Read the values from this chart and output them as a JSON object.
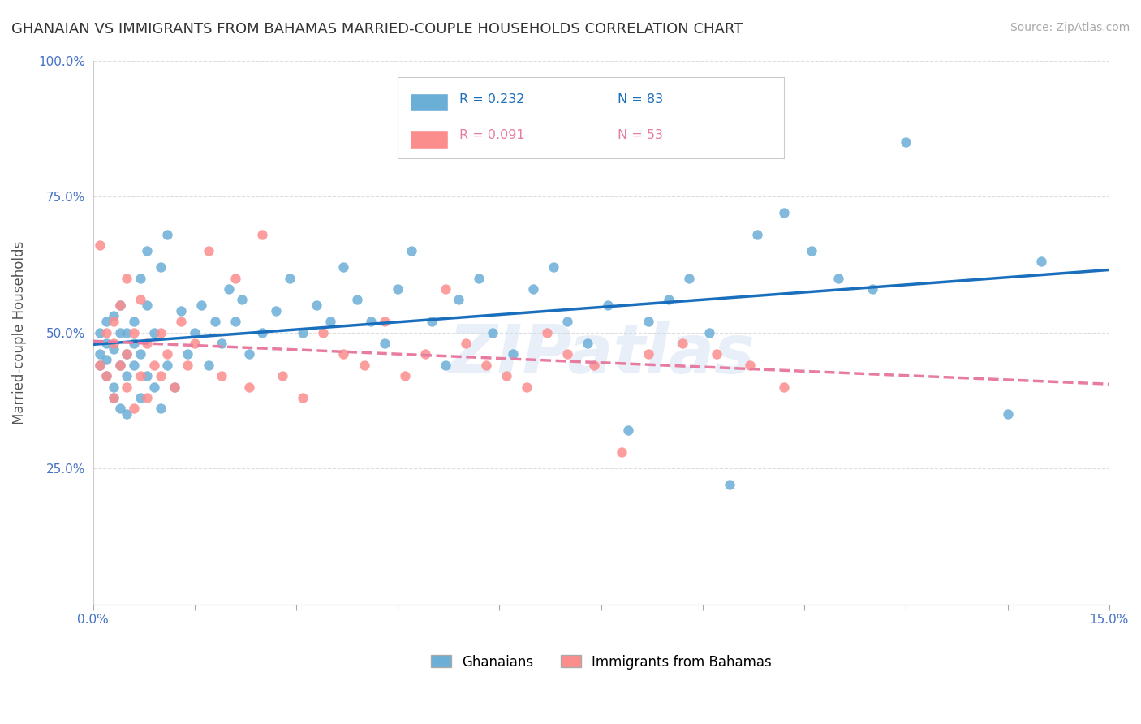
{
  "title": "GHANAIAN VS IMMIGRANTS FROM BAHAMAS MARRIED-COUPLE HOUSEHOLDS CORRELATION CHART",
  "source": "Source: ZipAtlas.com",
  "ylabel_label": "Married-couple Households",
  "x_min": 0.0,
  "x_max": 0.15,
  "y_min": 0.0,
  "y_max": 1.0,
  "y_ticks": [
    0.0,
    0.25,
    0.5,
    0.75,
    1.0
  ],
  "y_tick_labels": [
    "",
    "25.0%",
    "50.0%",
    "75.0%",
    "100.0%"
  ],
  "ghanaian_color": "#6baed6",
  "bahamas_color": "#fc8d8d",
  "ghanaian_R": 0.232,
  "ghanaian_N": 83,
  "bahamas_R": 0.091,
  "bahamas_N": 53,
  "trend_blue": "#1a6fbd",
  "trend_pink": "#e87ca0",
  "watermark": "ZIPatlas",
  "background_color": "#ffffff",
  "grid_color": "#dddddd",
  "tick_label_color": "#4472c4",
  "ghanaian_x": [
    0.001,
    0.001,
    0.001,
    0.002,
    0.002,
    0.002,
    0.002,
    0.003,
    0.003,
    0.003,
    0.003,
    0.004,
    0.004,
    0.004,
    0.004,
    0.005,
    0.005,
    0.005,
    0.005,
    0.006,
    0.006,
    0.006,
    0.007,
    0.007,
    0.007,
    0.008,
    0.008,
    0.008,
    0.009,
    0.009,
    0.01,
    0.01,
    0.011,
    0.011,
    0.012,
    0.013,
    0.014,
    0.015,
    0.016,
    0.017,
    0.018,
    0.019,
    0.02,
    0.021,
    0.022,
    0.023,
    0.025,
    0.027,
    0.029,
    0.031,
    0.033,
    0.035,
    0.037,
    0.039,
    0.041,
    0.043,
    0.045,
    0.047,
    0.05,
    0.052,
    0.054,
    0.057,
    0.059,
    0.062,
    0.065,
    0.068,
    0.07,
    0.073,
    0.076,
    0.079,
    0.082,
    0.085,
    0.088,
    0.091,
    0.094,
    0.098,
    0.102,
    0.106,
    0.11,
    0.115,
    0.12,
    0.135,
    0.14
  ],
  "ghanaian_y": [
    0.46,
    0.5,
    0.44,
    0.48,
    0.42,
    0.45,
    0.52,
    0.4,
    0.47,
    0.53,
    0.38,
    0.44,
    0.5,
    0.36,
    0.55,
    0.42,
    0.46,
    0.5,
    0.35,
    0.44,
    0.48,
    0.52,
    0.38,
    0.46,
    0.6,
    0.42,
    0.55,
    0.65,
    0.4,
    0.5,
    0.36,
    0.62,
    0.44,
    0.68,
    0.4,
    0.54,
    0.46,
    0.5,
    0.55,
    0.44,
    0.52,
    0.48,
    0.58,
    0.52,
    0.56,
    0.46,
    0.5,
    0.54,
    0.6,
    0.5,
    0.55,
    0.52,
    0.62,
    0.56,
    0.52,
    0.48,
    0.58,
    0.65,
    0.52,
    0.44,
    0.56,
    0.6,
    0.5,
    0.46,
    0.58,
    0.62,
    0.52,
    0.48,
    0.55,
    0.32,
    0.52,
    0.56,
    0.6,
    0.5,
    0.22,
    0.68,
    0.72,
    0.65,
    0.6,
    0.58,
    0.85,
    0.35,
    0.63
  ],
  "bahamas_x": [
    0.001,
    0.001,
    0.002,
    0.002,
    0.003,
    0.003,
    0.003,
    0.004,
    0.004,
    0.005,
    0.005,
    0.005,
    0.006,
    0.006,
    0.007,
    0.007,
    0.008,
    0.008,
    0.009,
    0.01,
    0.01,
    0.011,
    0.012,
    0.013,
    0.014,
    0.015,
    0.017,
    0.019,
    0.021,
    0.023,
    0.025,
    0.028,
    0.031,
    0.034,
    0.037,
    0.04,
    0.043,
    0.046,
    0.049,
    0.052,
    0.055,
    0.058,
    0.061,
    0.064,
    0.067,
    0.07,
    0.074,
    0.078,
    0.082,
    0.087,
    0.092,
    0.097,
    0.102
  ],
  "bahamas_y": [
    0.66,
    0.44,
    0.5,
    0.42,
    0.48,
    0.38,
    0.52,
    0.44,
    0.55,
    0.4,
    0.46,
    0.6,
    0.36,
    0.5,
    0.42,
    0.56,
    0.38,
    0.48,
    0.44,
    0.5,
    0.42,
    0.46,
    0.4,
    0.52,
    0.44,
    0.48,
    0.65,
    0.42,
    0.6,
    0.4,
    0.68,
    0.42,
    0.38,
    0.5,
    0.46,
    0.44,
    0.52,
    0.42,
    0.46,
    0.58,
    0.48,
    0.44,
    0.42,
    0.4,
    0.5,
    0.46,
    0.44,
    0.28,
    0.46,
    0.48,
    0.46,
    0.44,
    0.4
  ]
}
